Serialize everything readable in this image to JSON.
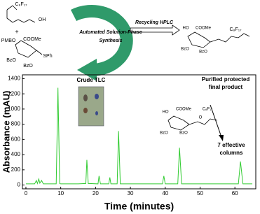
{
  "chart_data": {
    "type": "line",
    "xlabel": "Time (minutes)",
    "ylabel": "Absorbance (mAU)",
    "x": [
      0,
      2.5,
      3,
      3.3,
      3.7,
      4,
      4.5,
      5,
      8.7,
      9.2,
      9.7,
      10,
      15,
      17.2,
      17.5,
      17.9,
      20.7,
      21,
      21.4,
      23.8,
      24.1,
      24.4,
      26.2,
      26.6,
      27.1,
      39.2,
      39.6,
      40,
      43.6,
      44.1,
      44.7,
      61,
      61.6,
      62.3,
      65
    ],
    "series": [
      {
        "color": "#33cc33",
        "values": [
          15,
          15,
          60,
          20,
          80,
          25,
          60,
          15,
          15,
          1280,
          20,
          15,
          15,
          20,
          330,
          20,
          15,
          120,
          15,
          15,
          100,
          15,
          15,
          710,
          15,
          15,
          120,
          15,
          15,
          490,
          15,
          15,
          310,
          15,
          15
        ]
      }
    ],
    "xlim": [
      -1,
      66
    ],
    "ylim": [
      -50,
      1450
    ],
    "xticks": [
      0,
      10,
      20,
      30,
      40,
      50,
      60
    ],
    "yticks": [
      0,
      200,
      400,
      600,
      800,
      1000,
      1200,
      1400
    ],
    "annotations": [
      "Crude TLC",
      "Purified protected",
      "final product",
      "7 effective",
      "columns",
      "C₈F₁₇",
      "HO",
      "COOMe",
      "BzO",
      "BzO",
      "O"
    ]
  },
  "scheme": {
    "labels": [
      "C₈F₁₇",
      "OH",
      "+",
      "PMBO",
      "COOMe",
      "SPh",
      "BzO",
      "BzO",
      "Automated Solution-Phase",
      "Synthesis",
      "Recycling HPLC",
      "HO",
      "COOMe",
      "C₈F₁₇",
      "BzO",
      "BzO"
    ]
  }
}
